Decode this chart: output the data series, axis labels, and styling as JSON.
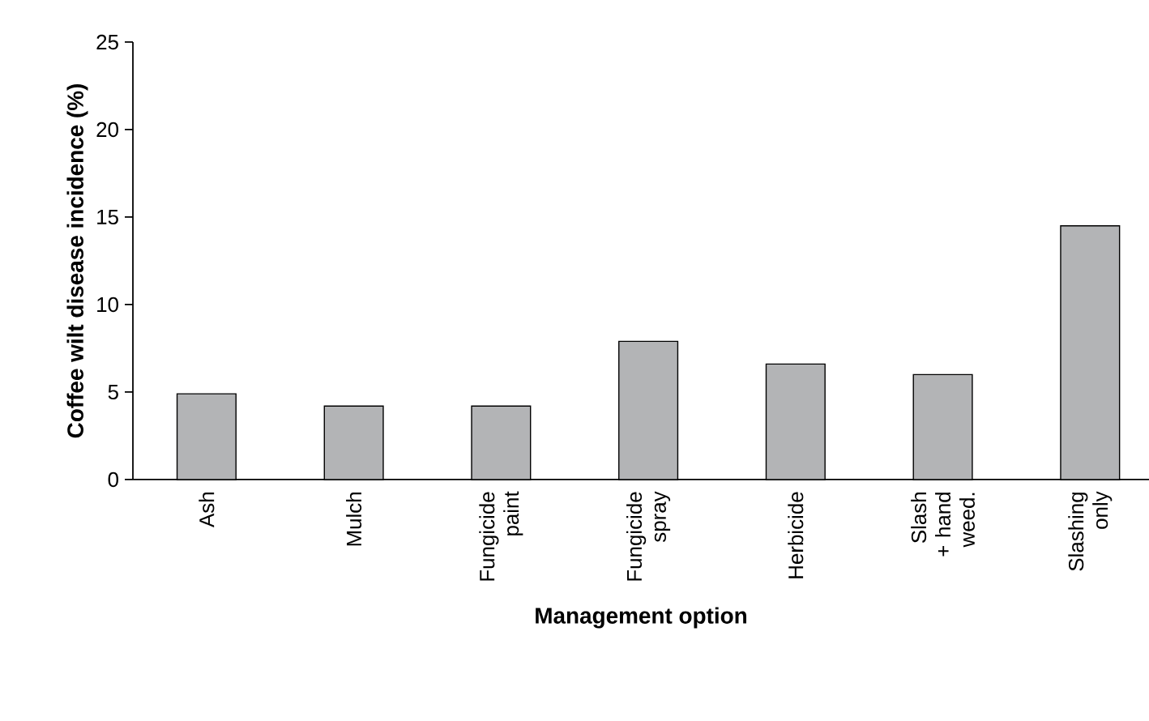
{
  "chart_data": {
    "type": "bar",
    "xlabel": "Management option",
    "ylabel": "Coffee wilt disease incidence (%)",
    "categories": [
      "Ash",
      "Mulch",
      "Fungicide paint",
      "Fungicide spray",
      "Herbicide",
      "Slash + hand weed.",
      "Slashing only"
    ],
    "values": [
      4.9,
      4.2,
      4.2,
      7.9,
      6.6,
      6.0,
      14.5
    ],
    "color": "#b3b4b6",
    "ylim": [
      0,
      25
    ],
    "yticks": [
      0,
      5,
      10,
      15,
      20,
      25
    ]
  }
}
